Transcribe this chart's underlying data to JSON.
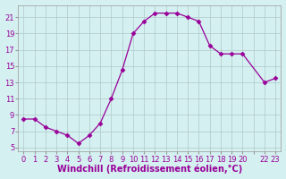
{
  "x": [
    0,
    1,
    2,
    3,
    4,
    5,
    6,
    7,
    8,
    9,
    10,
    11,
    12,
    13,
    14,
    15,
    16,
    17,
    18,
    19,
    20,
    22,
    23
  ],
  "y": [
    8.5,
    8.5,
    7.5,
    7.0,
    6.5,
    5.5,
    6.5,
    8.0,
    11.0,
    14.5,
    19.0,
    20.5,
    21.5,
    21.5,
    21.5,
    21.0,
    20.5,
    17.5,
    16.5,
    16.5,
    16.5,
    13.0,
    13.5
  ],
  "line_color": "#990099",
  "marker": "D",
  "marker_size": 2.5,
  "bg_color": "#d4f0f0",
  "grid_color": "#b0c8c8",
  "xlabel": "Windchill (Refroidissement éolien,°C)",
  "xlabel_color": "#990099",
  "ylabel_ticks": [
    5,
    7,
    9,
    11,
    13,
    15,
    17,
    19,
    21
  ],
  "xlim": [
    -0.5,
    23.5
  ],
  "ylim": [
    4.5,
    22.5
  ],
  "tick_color": "#990099",
  "label_fontsize": 7.0,
  "tick_fontsize": 6.0,
  "figsize": [
    3.2,
    2.0
  ],
  "dpi": 100
}
